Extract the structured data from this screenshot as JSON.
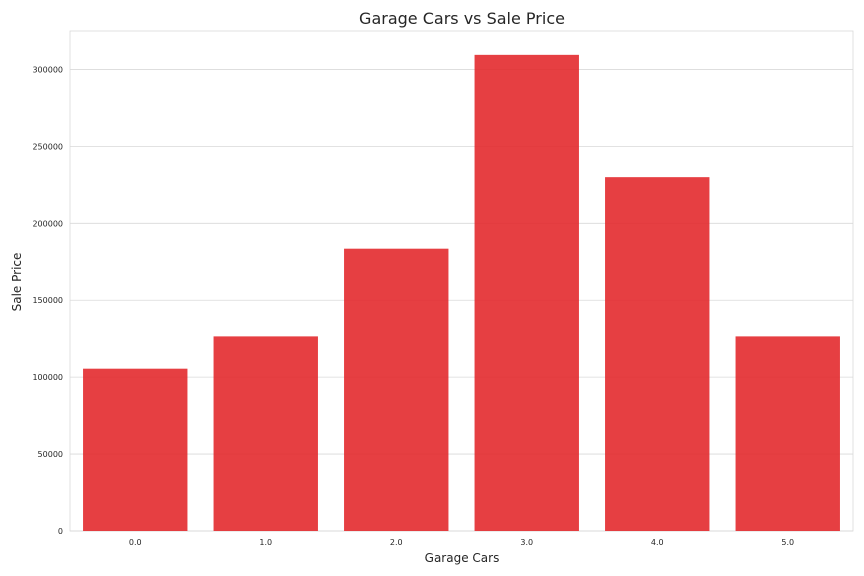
{
  "chart_data": {
    "type": "bar",
    "title": "Garage Cars vs Sale Price",
    "xlabel": "Garage Cars",
    "ylabel": "Sale Price",
    "categories": [
      "0.0",
      "1.0",
      "2.0",
      "3.0",
      "4.0",
      "5.0"
    ],
    "values": [
      105500,
      126500,
      183500,
      309500,
      230000,
      126500
    ],
    "ylim": [
      0,
      325000
    ],
    "yticks": [
      0,
      50000,
      100000,
      150000,
      200000,
      250000,
      300000
    ],
    "ytick_labels": [
      "0",
      "50000",
      "100000",
      "150000",
      "200000",
      "250000",
      "300000"
    ],
    "grid": "y",
    "bar_color": "#e32428",
    "grid_color": "#d9d9d9",
    "axes_edge_color": "#d9d9d9"
  }
}
